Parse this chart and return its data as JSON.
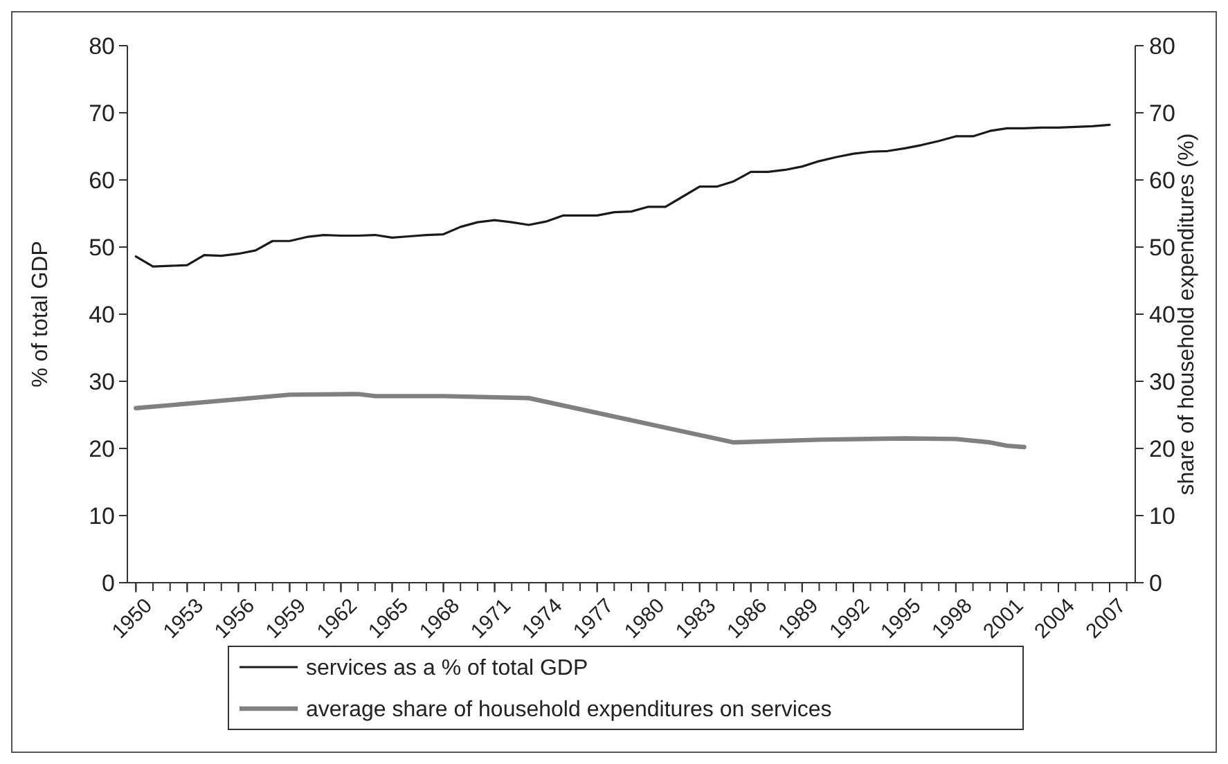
{
  "chart_data": {
    "type": "line",
    "ylabel": "% of total GDP",
    "y2label": "share of household expenditures (%)",
    "xlim": [
      1949.5,
      2008.5
    ],
    "xticks": [
      1950,
      1953,
      1956,
      1959,
      1962,
      1965,
      1968,
      1971,
      1974,
      1977,
      1980,
      1983,
      1986,
      1989,
      1992,
      1995,
      1998,
      2001,
      2004,
      2007
    ],
    "ylim": [
      0,
      80
    ],
    "yticks": [
      0,
      10,
      20,
      30,
      40,
      50,
      60,
      70,
      80
    ],
    "y2lim": [
      0,
      80
    ],
    "y2ticks": [
      0,
      10,
      20,
      30,
      40,
      50,
      60,
      70,
      80
    ],
    "legend": "bottom",
    "grid": false,
    "line_style": "solid",
    "marker": "none",
    "series": [
      {
        "name": "services as a % of total GDP",
        "color": "#1a1a1a",
        "x": [
          1950,
          1951,
          1952,
          1953,
          1954,
          1955,
          1956,
          1957,
          1958,
          1959,
          1960,
          1961,
          1962,
          1963,
          1964,
          1965,
          1966,
          1967,
          1968,
          1969,
          1970,
          1971,
          1972,
          1973,
          1974,
          1975,
          1976,
          1977,
          1978,
          1979,
          1980,
          1981,
          1982,
          1983,
          1984,
          1985,
          1986,
          1987,
          1988,
          1989,
          1990,
          1991,
          1992,
          1993,
          1994,
          1995,
          1996,
          1997,
          1998,
          1999,
          2000,
          2001,
          2002,
          2003,
          2004,
          2005,
          2006,
          2007
        ],
        "values": [
          48.6,
          47.1,
          47.2,
          47.3,
          48.8,
          48.7,
          49.0,
          49.5,
          50.9,
          50.9,
          51.5,
          51.8,
          51.7,
          51.7,
          51.8,
          51.4,
          51.6,
          51.8,
          51.9,
          53.0,
          53.7,
          54.0,
          53.7,
          53.3,
          53.8,
          54.7,
          54.7,
          54.7,
          55.2,
          55.3,
          56.0,
          56.0,
          57.5,
          59.0,
          59.0,
          59.8,
          61.2,
          61.2,
          61.5,
          62.0,
          62.8,
          63.4,
          63.9,
          64.2,
          64.3,
          64.7,
          65.2,
          65.8,
          66.5,
          66.5,
          67.3,
          67.7,
          67.7,
          67.8,
          67.8,
          67.9,
          68.0,
          68.2
        ]
      },
      {
        "name": "average share of household expenditures on services",
        "color": "#808080",
        "x": [
          1950,
          1959,
          1963,
          1964,
          1968,
          1973,
          1985,
          1990,
          1995,
          1998,
          2000,
          2001,
          2002
        ],
        "values": [
          26.0,
          28.0,
          28.1,
          27.8,
          27.8,
          27.5,
          20.9,
          21.3,
          21.5,
          21.4,
          20.9,
          20.4,
          20.2
        ]
      }
    ]
  }
}
